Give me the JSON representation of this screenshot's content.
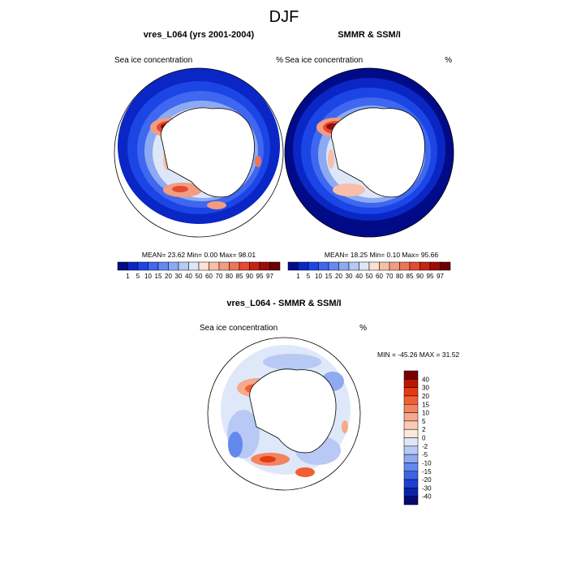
{
  "figure": {
    "title": "DJF"
  },
  "colorbar_levels": [
    "1",
    "5",
    "10",
    "15",
    "20",
    "30",
    "40",
    "50",
    "60",
    "70",
    "80",
    "85",
    "90",
    "95",
    "97"
  ],
  "colorbar_colors": [
    "#020b87",
    "#0a27c6",
    "#1c45e6",
    "#3f67ef",
    "#6389f2",
    "#8caaf3",
    "#b5c9f5",
    "#dde7f8",
    "#fbe1d5",
    "#f8bea9",
    "#f39c81",
    "#ee7458",
    "#e34b33",
    "#c42414",
    "#9c0c07",
    "#6d0000"
  ],
  "diff_levels": [
    "40",
    "30",
    "20",
    "15",
    "10",
    "5",
    "2",
    "0",
    "-2",
    "-5",
    "-10",
    "-15",
    "-20",
    "-30",
    "-40"
  ],
  "diff_colors": [
    "#7a0000",
    "#bb1700",
    "#e63a10",
    "#f25f32",
    "#f38460",
    "#f6a98b",
    "#f9cbb5",
    "#fde8dc",
    "#dfe8f9",
    "#b7c9f4",
    "#8eaaf1",
    "#6489ee",
    "#3b63e6",
    "#1c40d4",
    "#0a23a9",
    "#020b74"
  ],
  "panels": [
    {
      "title": "vres_L064 (yrs 2001-2004)",
      "left_label": "Sea ice concentration",
      "right_label": "%",
      "mean_label": "MEAN=",
      "mean": "23.62",
      "min_label": "Min=",
      "min": "0.00",
      "max_label": "Max=",
      "max": "98.01"
    },
    {
      "title": "SMMR & SSM/I",
      "left_label": "Sea ice concentration",
      "right_label": "%",
      "mean_label": "MEAN=",
      "mean": "18.25",
      "min_label": "Min=",
      "min": "0.10",
      "max_label": "Max=",
      "max": "95.66"
    },
    {
      "title": "vres_L064 - SMMR & SSM/I",
      "left_label": "Sea ice concentration",
      "right_label": "%",
      "min_label": "MIN =",
      "min": "-45.26",
      "max_label": "MAX =",
      "max": "31.52"
    }
  ],
  "chart_data": [
    {
      "type": "heatmap",
      "title": "vres_L064 (yrs 2001-2004)",
      "variable": "Sea ice concentration",
      "units": "%",
      "stats": {
        "mean": 23.62,
        "min": 0.0,
        "max": 98.01
      },
      "contour_levels": [
        1,
        5,
        10,
        15,
        20,
        30,
        40,
        50,
        60,
        70,
        80,
        85,
        90,
        95,
        97
      ]
    },
    {
      "type": "heatmap",
      "title": "SMMR & SSM/I",
      "variable": "Sea ice concentration",
      "units": "%",
      "stats": {
        "mean": 18.25,
        "min": 0.1,
        "max": 95.66
      },
      "contour_levels": [
        1,
        5,
        10,
        15,
        20,
        30,
        40,
        50,
        60,
        70,
        80,
        85,
        90,
        95,
        97
      ]
    },
    {
      "type": "heatmap",
      "title": "vres_L064 - SMMR & SSM/I",
      "variable": "Sea ice concentration",
      "units": "%",
      "stats": {
        "min": -45.26,
        "max": 31.52
      },
      "contour_levels": [
        40,
        30,
        20,
        15,
        10,
        5,
        2,
        0,
        -2,
        -5,
        -10,
        -15,
        -20,
        -30,
        -40
      ]
    }
  ]
}
